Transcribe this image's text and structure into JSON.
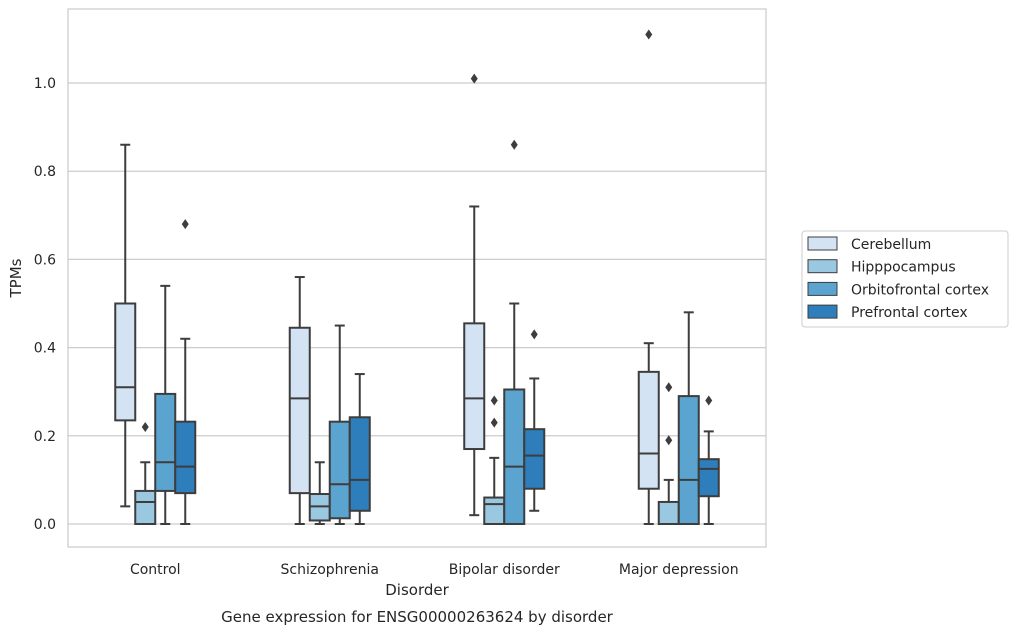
{
  "chart_data": {
    "type": "box",
    "caption": "Gene expression for ENSG00000263624 by disorder",
    "xlabel": "Disorder",
    "ylabel": "TPMs",
    "ylim": [
      -0.05,
      1.17
    ],
    "yticks": [
      "0.0",
      "0.2",
      "0.4",
      "0.6",
      "0.8",
      "1.0"
    ],
    "grid": true,
    "legend_position": "right",
    "categories": [
      "Control",
      "Schizophrenia",
      "Bipolar disorder",
      "Major depression"
    ],
    "series": [
      {
        "name": "Cerebellum",
        "color": "#d3e3f3",
        "boxes": [
          {
            "whislo": 0.04,
            "q1": 0.235,
            "med": 0.31,
            "q3": 0.5,
            "whishi": 0.86,
            "fliers": []
          },
          {
            "whislo": 0.0,
            "q1": 0.07,
            "med": 0.285,
            "q3": 0.445,
            "whishi": 0.56,
            "fliers": []
          },
          {
            "whislo": 0.02,
            "q1": 0.17,
            "med": 0.285,
            "q3": 0.455,
            "whishi": 0.72,
            "fliers": [
              1.01
            ]
          },
          {
            "whislo": 0.0,
            "q1": 0.08,
            "med": 0.16,
            "q3": 0.345,
            "whishi": 0.41,
            "fliers": [
              1.11
            ]
          }
        ]
      },
      {
        "name": "Hipppocampus",
        "color": "#9ac8e0",
        "boxes": [
          {
            "whislo": 0.0,
            "q1": 0.0,
            "med": 0.05,
            "q3": 0.075,
            "whishi": 0.14,
            "fliers": [
              0.22
            ]
          },
          {
            "whislo": 0.0,
            "q1": 0.008,
            "med": 0.04,
            "q3": 0.068,
            "whishi": 0.14,
            "fliers": []
          },
          {
            "whislo": 0.0,
            "q1": 0.0,
            "med": 0.045,
            "q3": 0.06,
            "whishi": 0.15,
            "fliers": [
              0.23,
              0.28
            ]
          },
          {
            "whislo": 0.0,
            "q1": 0.0,
            "med": 0.0,
            "q3": 0.05,
            "whishi": 0.1,
            "fliers": [
              0.19,
              0.31
            ]
          }
        ]
      },
      {
        "name": "Orbitofrontal cortex",
        "color": "#5ca4d0",
        "boxes": [
          {
            "whislo": 0.0,
            "q1": 0.075,
            "med": 0.14,
            "q3": 0.295,
            "whishi": 0.54,
            "fliers": []
          },
          {
            "whislo": 0.0,
            "q1": 0.013,
            "med": 0.09,
            "q3": 0.232,
            "whishi": 0.45,
            "fliers": []
          },
          {
            "whislo": 0.0,
            "q1": 0.0,
            "med": 0.13,
            "q3": 0.305,
            "whishi": 0.5,
            "fliers": [
              0.86
            ]
          },
          {
            "whislo": 0.0,
            "q1": 0.0,
            "med": 0.1,
            "q3": 0.29,
            "whishi": 0.48,
            "fliers": []
          }
        ]
      },
      {
        "name": "Prefrontal cortex",
        "color": "#2e7ebc",
        "boxes": [
          {
            "whislo": 0.0,
            "q1": 0.07,
            "med": 0.13,
            "q3": 0.232,
            "whishi": 0.42,
            "fliers": [
              0.68
            ]
          },
          {
            "whislo": 0.0,
            "q1": 0.03,
            "med": 0.1,
            "q3": 0.242,
            "whishi": 0.34,
            "fliers": []
          },
          {
            "whislo": 0.03,
            "q1": 0.08,
            "med": 0.155,
            "q3": 0.215,
            "whishi": 0.33,
            "fliers": [
              0.43
            ]
          },
          {
            "whislo": 0.0,
            "q1": 0.063,
            "med": 0.125,
            "q3": 0.147,
            "whishi": 0.21,
            "fliers": [
              0.28
            ]
          }
        ]
      }
    ]
  }
}
